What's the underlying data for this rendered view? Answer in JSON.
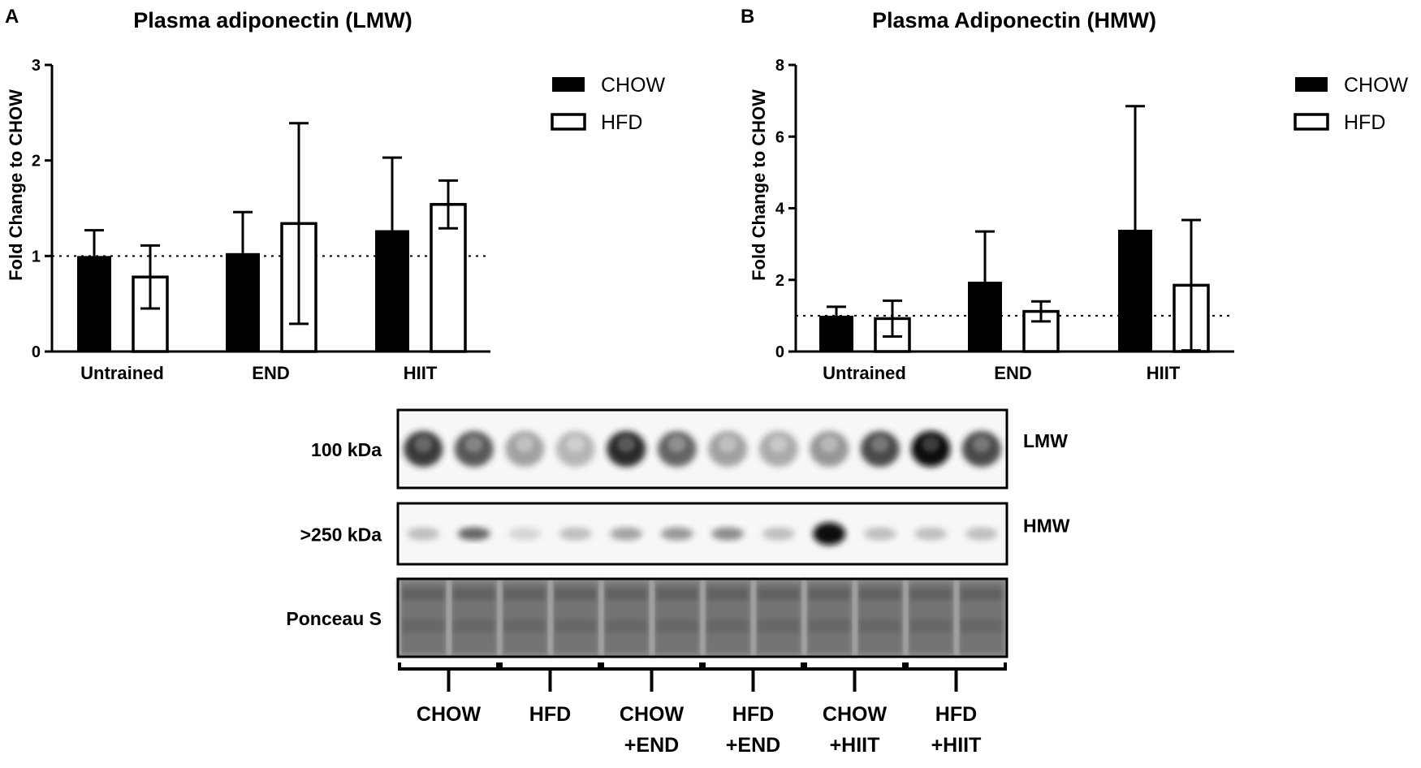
{
  "colors": {
    "chow": "#000000",
    "hfd": "#ffffff",
    "band": "#1a1a1a",
    "ponceau": "#8c8c8c"
  },
  "chart_data": [
    {
      "type": "bar",
      "panel": "A",
      "title": "Plasma adiponectin (LMW)",
      "ylabel": "Fold Change to CHOW",
      "xlabel": "",
      "categories": [
        "Untrained",
        "END",
        "HIIT"
      ],
      "ylim": [
        0,
        3
      ],
      "yticks": [
        "0",
        "1",
        "2",
        "3"
      ],
      "reference_line": 1,
      "legend_position": "top-right",
      "series": [
        {
          "name": "CHOW",
          "values": [
            1.0,
            1.03,
            1.27
          ],
          "error": [
            0.27,
            0.43,
            0.76
          ],
          "error_lower": [
            0,
            0,
            0
          ]
        },
        {
          "name": "HFD",
          "values": [
            0.78,
            1.34,
            1.54
          ],
          "error": [
            0.33,
            1.05,
            0.25
          ],
          "error_lower": [
            0.33,
            1.05,
            0.25
          ]
        }
      ]
    },
    {
      "type": "bar",
      "panel": "B",
      "title": "Plasma Adiponectin (HMW)",
      "ylabel": "Fold Change to CHOW",
      "xlabel": "",
      "categories": [
        "Untrained",
        "END",
        "HIIT"
      ],
      "ylim": [
        0,
        8
      ],
      "yticks": [
        "0",
        "2",
        "4",
        "6",
        "8"
      ],
      "reference_line": 1,
      "legend_position": "top-right",
      "series": [
        {
          "name": "CHOW",
          "values": [
            1.0,
            1.95,
            3.4
          ],
          "error": [
            0.25,
            1.4,
            3.45
          ],
          "error_lower": [
            0,
            0,
            0
          ]
        },
        {
          "name": "HFD",
          "values": [
            0.92,
            1.12,
            1.85
          ],
          "error": [
            0.5,
            0.28,
            1.82
          ],
          "error_lower": [
            0.5,
            0.28,
            1.82
          ]
        }
      ]
    }
  ],
  "blot": {
    "rows": [
      {
        "left_label": "100 kDa",
        "right_label": "LMW",
        "intensity": [
          0.85,
          0.75,
          0.45,
          0.35,
          0.9,
          0.7,
          0.45,
          0.4,
          0.5,
          0.8,
          1.0,
          0.8
        ]
      },
      {
        "left_label": ">250 kDa",
        "right_label": "HMW",
        "intensity": [
          0.3,
          0.7,
          0.15,
          0.3,
          0.45,
          0.5,
          0.55,
          0.3,
          1.0,
          0.3,
          0.3,
          0.3
        ]
      },
      {
        "left_label": "Ponceau S",
        "right_label": ""
      }
    ],
    "groups": [
      {
        "line1": "CHOW",
        "line2": ""
      },
      {
        "line1": "HFD",
        "line2": ""
      },
      {
        "line1": "CHOW",
        "line2": "+END"
      },
      {
        "line1": "HFD",
        "line2": "+END"
      },
      {
        "line1": "CHOW",
        "line2": "+HIIT"
      },
      {
        "line1": "HFD",
        "line2": "+HIIT"
      }
    ]
  }
}
